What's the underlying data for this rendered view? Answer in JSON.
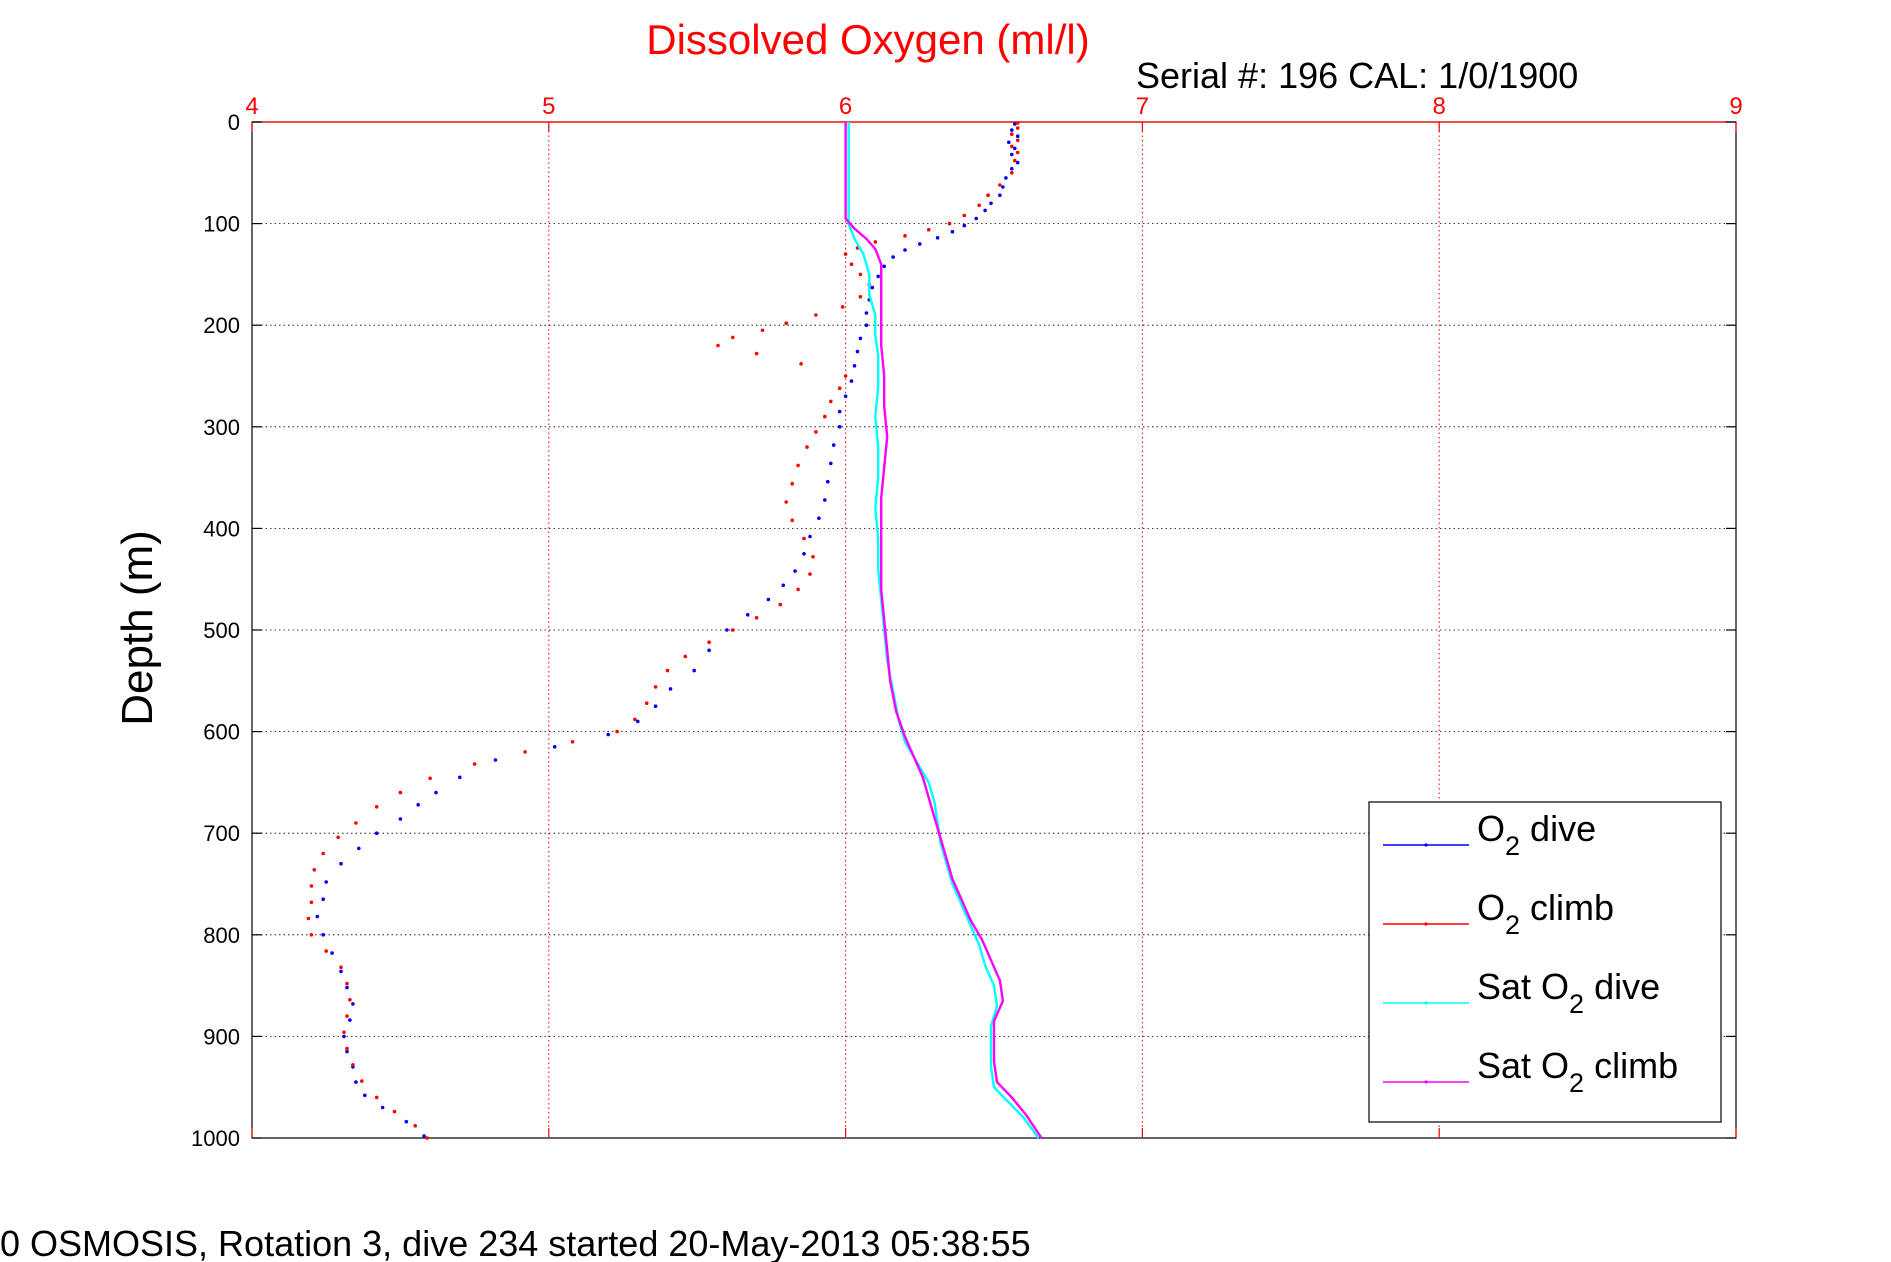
{
  "chart_data": {
    "type": "scatter",
    "title": "Dissolved Oxygen (ml/l)",
    "subtitle": "Serial #: 196  CAL: 1/0/1900",
    "footer": "0 OSMOSIS, Rotation 3, dive 234 started 20-May-2013 05:38:55",
    "ylabel": "Depth (m)",
    "xlim": [
      4,
      9
    ],
    "ylim": [
      0,
      1000
    ],
    "y_reversed": true,
    "x_ticks": [
      4,
      5,
      6,
      7,
      8,
      9
    ],
    "y_ticks": [
      0,
      100,
      200,
      300,
      400,
      500,
      600,
      700,
      800,
      900,
      1000
    ],
    "grid": true,
    "legend_position": "bottom-right",
    "colors": {
      "title": "#ff0000",
      "x_ticks": "#ff0000",
      "grid": "#ff0000",
      "o2_dive": "#0000ff",
      "o2_climb": "#ff0000",
      "sat_dive": "#00ffff",
      "sat_climb": "#ff00ff"
    },
    "series": [
      {
        "name": "O2 dive",
        "legend": {
          "pre": "O",
          "sub": "2",
          "post": " dive"
        },
        "style": "dots",
        "color": "#0000ff",
        "points": [
          [
            6.57,
            2
          ],
          [
            6.56,
            8
          ],
          [
            6.58,
            14
          ],
          [
            6.55,
            20
          ],
          [
            6.57,
            26
          ],
          [
            6.56,
            32
          ],
          [
            6.58,
            40
          ],
          [
            6.56,
            46
          ],
          [
            6.54,
            55
          ],
          [
            6.53,
            64
          ],
          [
            6.52,
            72
          ],
          [
            6.49,
            80
          ],
          [
            6.47,
            87
          ],
          [
            6.44,
            95
          ],
          [
            6.4,
            102
          ],
          [
            6.36,
            108
          ],
          [
            6.31,
            114
          ],
          [
            6.25,
            120
          ],
          [
            6.2,
            126
          ],
          [
            6.16,
            133
          ],
          [
            6.13,
            142
          ],
          [
            6.11,
            152
          ],
          [
            6.09,
            163
          ],
          [
            6.08,
            175
          ],
          [
            6.07,
            188
          ],
          [
            6.07,
            200
          ],
          [
            6.05,
            213
          ],
          [
            6.04,
            226
          ],
          [
            6.03,
            240
          ],
          [
            6.02,
            255
          ],
          [
            6.0,
            270
          ],
          [
            5.98,
            285
          ],
          [
            5.98,
            300
          ],
          [
            5.96,
            318
          ],
          [
            5.95,
            336
          ],
          [
            5.94,
            354
          ],
          [
            5.93,
            372
          ],
          [
            5.91,
            390
          ],
          [
            5.88,
            408
          ],
          [
            5.86,
            425
          ],
          [
            5.83,
            442
          ],
          [
            5.79,
            456
          ],
          [
            5.74,
            470
          ],
          [
            5.67,
            485
          ],
          [
            5.6,
            500
          ],
          [
            5.54,
            520
          ],
          [
            5.49,
            540
          ],
          [
            5.41,
            558
          ],
          [
            5.36,
            575
          ],
          [
            5.3,
            590
          ],
          [
            5.2,
            603
          ],
          [
            5.02,
            615
          ],
          [
            4.82,
            628
          ],
          [
            4.7,
            645
          ],
          [
            4.62,
            660
          ],
          [
            4.56,
            672
          ],
          [
            4.5,
            686
          ],
          [
            4.42,
            700
          ],
          [
            4.36,
            715
          ],
          [
            4.3,
            730
          ],
          [
            4.25,
            748
          ],
          [
            4.24,
            765
          ],
          [
            4.22,
            782
          ],
          [
            4.24,
            800
          ],
          [
            4.27,
            818
          ],
          [
            4.3,
            836
          ],
          [
            4.32,
            852
          ],
          [
            4.34,
            868
          ],
          [
            4.33,
            884
          ],
          [
            4.31,
            900
          ],
          [
            4.32,
            915
          ],
          [
            4.34,
            930
          ],
          [
            4.35,
            945
          ],
          [
            4.38,
            958
          ],
          [
            4.44,
            970
          ],
          [
            4.52,
            984
          ],
          [
            4.58,
            998
          ]
        ]
      },
      {
        "name": "O2 climb",
        "legend": {
          "pre": "O",
          "sub": "2",
          "post": " climb"
        },
        "style": "dots",
        "color": "#ff0000",
        "points": [
          [
            6.58,
            1
          ],
          [
            6.58,
            6
          ],
          [
            6.56,
            12
          ],
          [
            6.58,
            18
          ],
          [
            6.56,
            24
          ],
          [
            6.58,
            30
          ],
          [
            6.57,
            38
          ],
          [
            6.56,
            50
          ],
          [
            6.52,
            62
          ],
          [
            6.48,
            72
          ],
          [
            6.45,
            82
          ],
          [
            6.4,
            92
          ],
          [
            6.35,
            100
          ],
          [
            6.28,
            106
          ],
          [
            6.2,
            112
          ],
          [
            6.1,
            118
          ],
          [
            6.04,
            124
          ],
          [
            6.0,
            130
          ],
          [
            6.02,
            140
          ],
          [
            6.05,
            150
          ],
          [
            6.08,
            160
          ],
          [
            6.05,
            172
          ],
          [
            5.99,
            182
          ],
          [
            5.9,
            190
          ],
          [
            5.8,
            198
          ],
          [
            5.72,
            205
          ],
          [
            5.62,
            212
          ],
          [
            5.57,
            220
          ],
          [
            5.7,
            228
          ],
          [
            5.85,
            238
          ],
          [
            6.0,
            250
          ],
          [
            5.98,
            262
          ],
          [
            5.95,
            275
          ],
          [
            5.93,
            290
          ],
          [
            5.9,
            305
          ],
          [
            5.87,
            320
          ],
          [
            5.84,
            338
          ],
          [
            5.82,
            356
          ],
          [
            5.8,
            374
          ],
          [
            5.82,
            392
          ],
          [
            5.86,
            410
          ],
          [
            5.89,
            428
          ],
          [
            5.88,
            445
          ],
          [
            5.84,
            460
          ],
          [
            5.78,
            475
          ],
          [
            5.7,
            488
          ],
          [
            5.62,
            500
          ],
          [
            5.54,
            512
          ],
          [
            5.46,
            526
          ],
          [
            5.4,
            540
          ],
          [
            5.36,
            556
          ],
          [
            5.33,
            572
          ],
          [
            5.29,
            588
          ],
          [
            5.23,
            600
          ],
          [
            5.08,
            610
          ],
          [
            4.92,
            620
          ],
          [
            4.75,
            632
          ],
          [
            4.6,
            646
          ],
          [
            4.5,
            660
          ],
          [
            4.42,
            674
          ],
          [
            4.35,
            690
          ],
          [
            4.29,
            704
          ],
          [
            4.24,
            720
          ],
          [
            4.21,
            736
          ],
          [
            4.2,
            752
          ],
          [
            4.2,
            768
          ],
          [
            4.19,
            784
          ],
          [
            4.2,
            800
          ],
          [
            4.25,
            816
          ],
          [
            4.3,
            832
          ],
          [
            4.32,
            848
          ],
          [
            4.33,
            864
          ],
          [
            4.32,
            880
          ],
          [
            4.31,
            896
          ],
          [
            4.32,
            912
          ],
          [
            4.34,
            928
          ],
          [
            4.37,
            944
          ],
          [
            4.42,
            960
          ],
          [
            4.48,
            974
          ],
          [
            4.55,
            988
          ],
          [
            4.59,
            1000
          ]
        ]
      },
      {
        "name": "Sat O2 dive",
        "legend": {
          "pre": "Sat O",
          "sub": "2",
          "post": " dive"
        },
        "style": "line",
        "color": "#00ffff",
        "points": [
          [
            6.01,
            0
          ],
          [
            6.01,
            50
          ],
          [
            6.01,
            100
          ],
          [
            6.03,
            115
          ],
          [
            6.06,
            130
          ],
          [
            6.08,
            150
          ],
          [
            6.08,
            170
          ],
          [
            6.1,
            190
          ],
          [
            6.1,
            210
          ],
          [
            6.11,
            230
          ],
          [
            6.11,
            260
          ],
          [
            6.1,
            290
          ],
          [
            6.11,
            320
          ],
          [
            6.11,
            350
          ],
          [
            6.1,
            380
          ],
          [
            6.11,
            410
          ],
          [
            6.11,
            440
          ],
          [
            6.12,
            470
          ],
          [
            6.13,
            500
          ],
          [
            6.14,
            530
          ],
          [
            6.16,
            560
          ],
          [
            6.18,
            590
          ],
          [
            6.2,
            610
          ],
          [
            6.24,
            630
          ],
          [
            6.28,
            650
          ],
          [
            6.3,
            670
          ],
          [
            6.31,
            690
          ],
          [
            6.32,
            710
          ],
          [
            6.34,
            730
          ],
          [
            6.36,
            750
          ],
          [
            6.39,
            770
          ],
          [
            6.42,
            790
          ],
          [
            6.45,
            810
          ],
          [
            6.47,
            830
          ],
          [
            6.5,
            850
          ],
          [
            6.51,
            870
          ],
          [
            6.49,
            890
          ],
          [
            6.49,
            910
          ],
          [
            6.49,
            930
          ],
          [
            6.5,
            950
          ],
          [
            6.55,
            965
          ],
          [
            6.6,
            980
          ],
          [
            6.65,
            1000
          ]
        ]
      },
      {
        "name": "Sat O2 climb",
        "legend": {
          "pre": "Sat O",
          "sub": "2",
          "post": " climb"
        },
        "style": "line",
        "color": "#ff00ff",
        "points": [
          [
            6.0,
            0
          ],
          [
            6.0,
            50
          ],
          [
            6.0,
            95
          ],
          [
            6.03,
            105
          ],
          [
            6.07,
            115
          ],
          [
            6.1,
            125
          ],
          [
            6.12,
            140
          ],
          [
            6.12,
            165
          ],
          [
            6.12,
            190
          ],
          [
            6.12,
            220
          ],
          [
            6.13,
            250
          ],
          [
            6.13,
            280
          ],
          [
            6.14,
            310
          ],
          [
            6.13,
            340
          ],
          [
            6.12,
            370
          ],
          [
            6.12,
            400
          ],
          [
            6.12,
            430
          ],
          [
            6.12,
            460
          ],
          [
            6.13,
            490
          ],
          [
            6.14,
            520
          ],
          [
            6.15,
            550
          ],
          [
            6.17,
            580
          ],
          [
            6.2,
            605
          ],
          [
            6.23,
            625
          ],
          [
            6.26,
            645
          ],
          [
            6.28,
            665
          ],
          [
            6.3,
            685
          ],
          [
            6.32,
            705
          ],
          [
            6.34,
            725
          ],
          [
            6.36,
            745
          ],
          [
            6.39,
            765
          ],
          [
            6.42,
            785
          ],
          [
            6.46,
            805
          ],
          [
            6.49,
            825
          ],
          [
            6.52,
            845
          ],
          [
            6.53,
            865
          ],
          [
            6.5,
            885
          ],
          [
            6.5,
            905
          ],
          [
            6.5,
            925
          ],
          [
            6.51,
            945
          ],
          [
            6.56,
            960
          ],
          [
            6.61,
            978
          ],
          [
            6.66,
            1000
          ]
        ]
      }
    ]
  }
}
